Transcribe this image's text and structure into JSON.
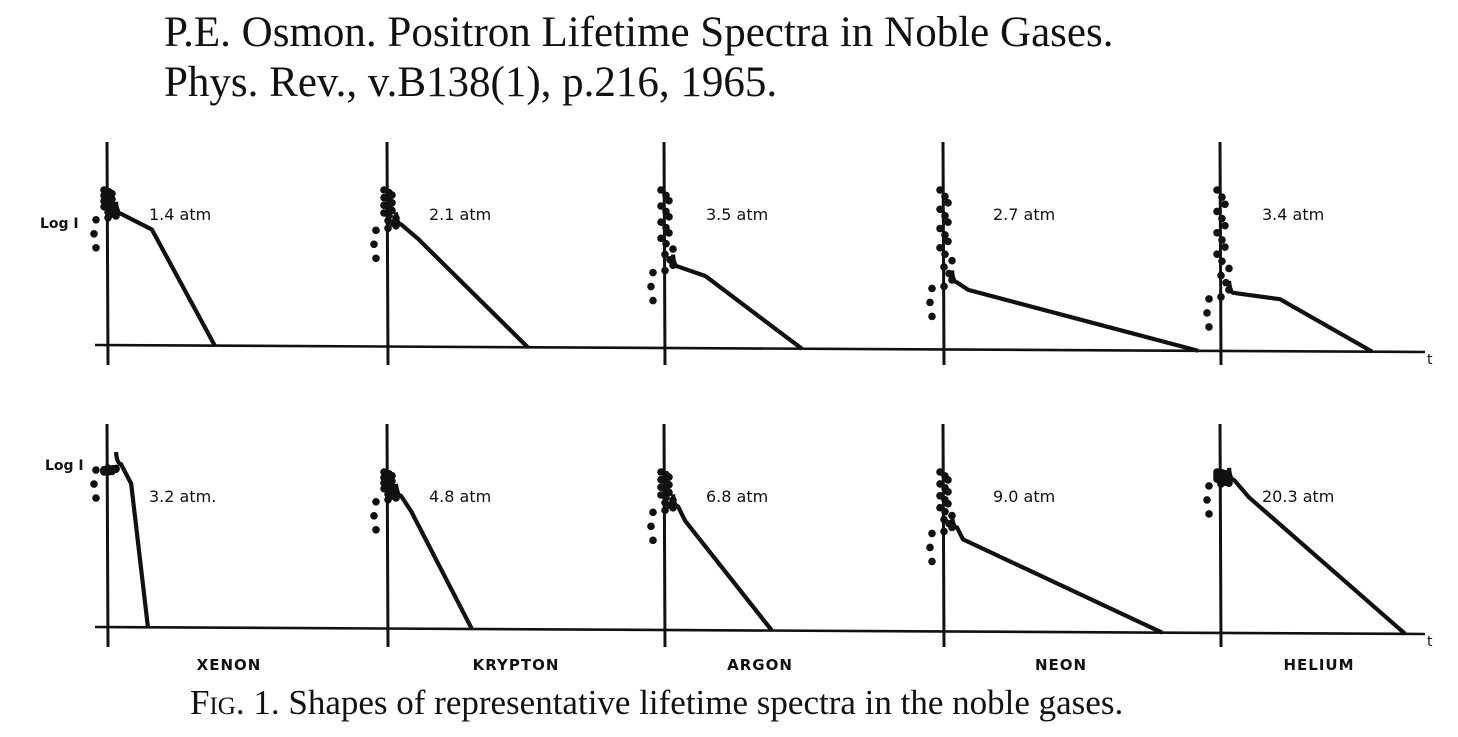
{
  "header": {
    "line1": "P.E. Osmon. Positron Lifetime Spectra in Noble Gases.",
    "line2": "Phys. Rev., v.B138(1), p.216, 1965."
  },
  "caption": {
    "fig": "Fig. 1.",
    "text": " Shapes of representative lifetime spectra in the noble gases."
  },
  "chart_data": {
    "type": "line",
    "title": "Shapes of representative lifetime spectra in the noble gases",
    "ylabel": "Log I",
    "xlabel": "t",
    "y_scale": "log",
    "gas_labels": [
      "XENON",
      "KRYPTON",
      "ARGON",
      "NEON",
      "HELIUM"
    ],
    "panels": [
      {
        "gas": "XENON",
        "row": 1,
        "pressure": "1.4 atm",
        "prompt_level": 0.26,
        "shoulder_end": 0.52,
        "shoulder_level": 0.2,
        "tail_end": 1.0
      },
      {
        "gas": "KRYPTON",
        "row": 1,
        "pressure": "2.1 atm",
        "prompt_level": 0.24,
        "shoulder_end": 0.22,
        "shoulder_level": 0.19,
        "tail_end": 1.0
      },
      {
        "gas": "ARGON",
        "row": 1,
        "pressure": "3.5 atm",
        "prompt_level": 0.16,
        "shoulder_end": 0.36,
        "shoulder_level": 0.14,
        "tail_end": 1.0
      },
      {
        "gas": "NEON",
        "row": 1,
        "pressure": "2.7 atm",
        "prompt_level": 0.13,
        "shoulder_end": 0.08,
        "shoulder_level": 0.12,
        "tail_end": 1.0
      },
      {
        "gas": "HELIUM",
        "row": 1,
        "pressure": "3.4 atm",
        "prompt_level": 0.11,
        "shoulder_end": 0.55,
        "shoulder_level": 0.08,
        "tail_end": 1.0
      },
      {
        "gas": "XENON",
        "row": 2,
        "pressure": "3.2 atm.",
        "prompt_level": 0.32,
        "shoulder_end": 0.45,
        "shoulder_level": 0.27,
        "tail_end": 1.0
      },
      {
        "gas": "KRYPTON",
        "row": 2,
        "pressure": "4.8 atm",
        "prompt_level": 0.26,
        "shoulder_end": 0.22,
        "shoulder_level": 0.22,
        "tail_end": 1.0
      },
      {
        "gas": "ARGON",
        "row": 2,
        "pressure": "6.8 atm",
        "prompt_level": 0.24,
        "shoulder_end": 0.12,
        "shoulder_level": 0.2,
        "tail_end": 1.0
      },
      {
        "gas": "NEON",
        "row": 2,
        "pressure": "9.0 atm",
        "prompt_level": 0.2,
        "shoulder_end": 0.05,
        "shoulder_level": 0.18,
        "tail_end": 1.0
      },
      {
        "gas": "HELIUM",
        "row": 2,
        "pressure": "20.3 atm",
        "prompt_level": 0.29,
        "shoulder_end": 0.15,
        "shoulder_level": 0.26,
        "tail_end": 1.0
      }
    ]
  }
}
